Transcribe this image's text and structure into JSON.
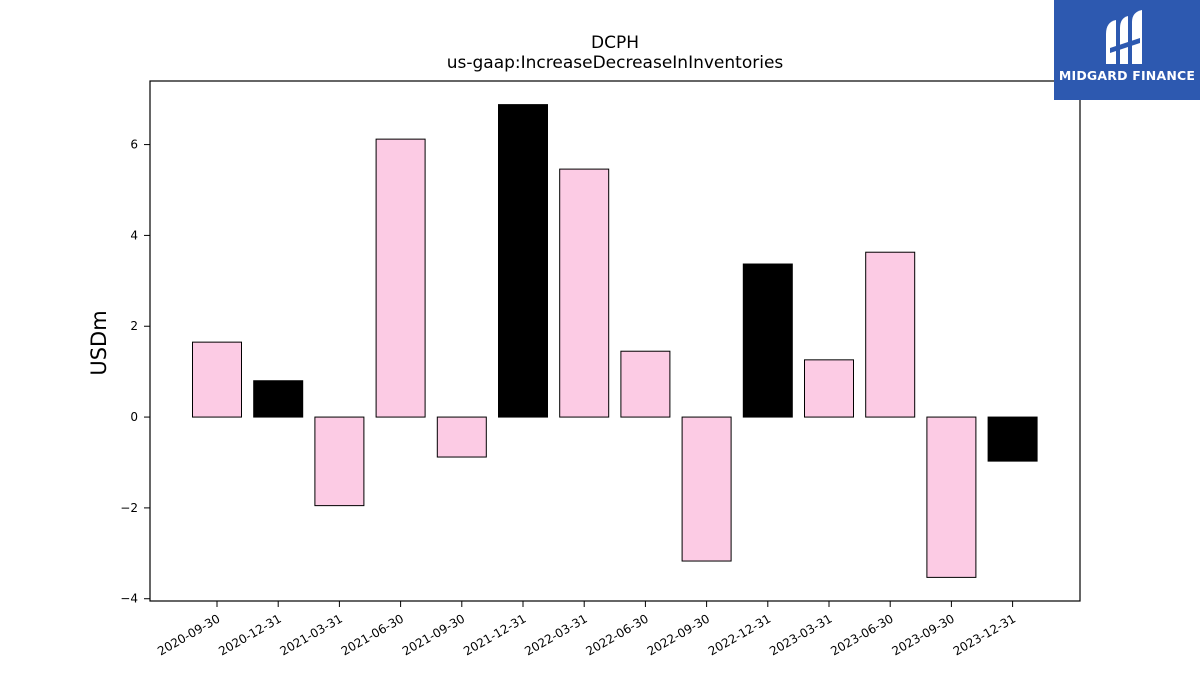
{
  "chart_data": {
    "type": "bar",
    "title": "DCPH",
    "subtitle": "us-gaap:IncreaseDecreaseInInventories",
    "xlabel": "",
    "ylabel": "USDm",
    "ylim": [
      -4.05,
      7.4
    ],
    "yticks": [
      -4,
      -2,
      0,
      2,
      4,
      6
    ],
    "ytick_labels": [
      "−4",
      "−2",
      "0",
      "2",
      "4",
      "6"
    ],
    "categories": [
      "2020-09-30",
      "2020-12-31",
      "2021-03-31",
      "2021-06-30",
      "2021-09-30",
      "2021-12-31",
      "2022-03-31",
      "2022-06-30",
      "2022-09-30",
      "2022-12-31",
      "2023-03-31",
      "2023-06-30",
      "2023-09-30",
      "2023-12-31"
    ],
    "values": [
      1.65,
      0.8,
      -1.95,
      6.12,
      -0.88,
      6.88,
      5.46,
      1.45,
      -3.17,
      3.37,
      1.26,
      3.63,
      -3.53,
      -0.97
    ],
    "bar_colors": [
      "#fccbe4",
      "#000000",
      "#fccbe4",
      "#fccbe4",
      "#fccbe4",
      "#000000",
      "#fccbe4",
      "#fccbe4",
      "#fccbe4",
      "#000000",
      "#fccbe4",
      "#fccbe4",
      "#fccbe4",
      "#000000"
    ],
    "grid": false,
    "legend": "none"
  },
  "logo": {
    "text": "MIDGARD FINANCE",
    "background": "#2d59b0"
  }
}
